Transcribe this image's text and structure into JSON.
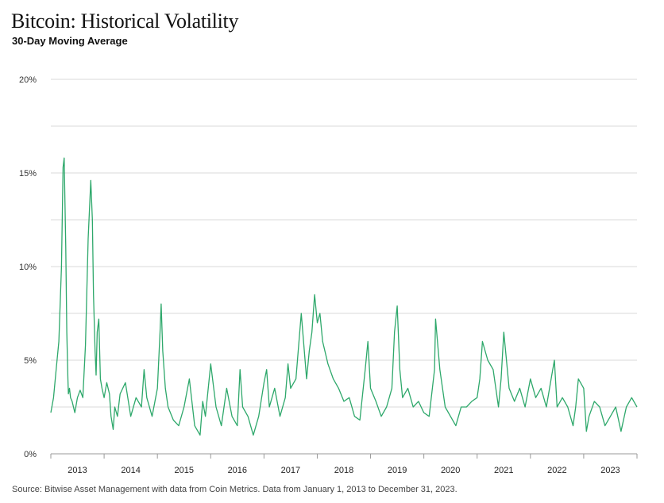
{
  "header": {
    "title": "Bitcoin: Historical Volatility",
    "subtitle": "30-Day Moving Average"
  },
  "footer": {
    "source": "Source: Bitwise Asset Management with data from Coin Metrics. Data from January 1, 2013 to December 31, 2023."
  },
  "colors": {
    "line": "#2ea86b",
    "grid": "#d9d9d9",
    "axis": "#999999"
  },
  "chart_data": {
    "type": "line",
    "title": "Bitcoin: Historical Volatility",
    "subtitle": "30-Day Moving Average",
    "xlabel": "",
    "ylabel": "",
    "ylim": [
      0,
      20
    ],
    "xlim": [
      2013.0,
      2024.0
    ],
    "yticks": [
      {
        "value": 0,
        "label": "0%"
      },
      {
        "value": 5,
        "label": "5%"
      },
      {
        "value": 10,
        "label": "10%"
      },
      {
        "value": 15,
        "label": "15%"
      },
      {
        "value": 20,
        "label": "20%"
      }
    ],
    "gridlines": [
      0,
      2.5,
      5,
      7.5,
      10,
      12.5,
      15,
      17.5,
      20
    ],
    "xtick_labels": [
      "2013",
      "2014",
      "2015",
      "2016",
      "2017",
      "2018",
      "2019",
      "2020",
      "2021",
      "2022",
      "2023"
    ],
    "year_boundaries": [
      2013,
      2014,
      2015,
      2016,
      2017,
      2018,
      2019,
      2020,
      2021,
      2022,
      2023,
      2024
    ],
    "series": [
      {
        "name": "30-Day Moving Average Volatility",
        "x": [
          2013.0,
          2013.05,
          2013.1,
          2013.15,
          2013.2,
          2013.23,
          2013.25,
          2013.28,
          2013.3,
          2013.32,
          2013.33,
          2013.35,
          2013.37,
          2013.4,
          2013.45,
          2013.5,
          2013.55,
          2013.6,
          2013.65,
          2013.7,
          2013.75,
          2013.78,
          2013.8,
          2013.83,
          2013.85,
          2013.87,
          2013.9,
          2013.93,
          2013.96,
          2014.0,
          2014.05,
          2014.1,
          2014.13,
          2014.17,
          2014.2,
          2014.25,
          2014.3,
          2014.4,
          2014.5,
          2014.6,
          2014.7,
          2014.75,
          2014.8,
          2014.9,
          2015.0,
          2015.05,
          2015.07,
          2015.1,
          2015.15,
          2015.2,
          2015.3,
          2015.4,
          2015.5,
          2015.6,
          2015.7,
          2015.8,
          2015.85,
          2015.9,
          2016.0,
          2016.1,
          2016.2,
          2016.3,
          2016.4,
          2016.5,
          2016.55,
          2016.6,
          2016.7,
          2016.8,
          2016.9,
          2017.0,
          2017.05,
          2017.1,
          2017.2,
          2017.3,
          2017.4,
          2017.45,
          2017.5,
          2017.6,
          2017.7,
          2017.8,
          2017.85,
          2017.9,
          2017.95,
          2018.0,
          2018.05,
          2018.1,
          2018.2,
          2018.3,
          2018.4,
          2018.5,
          2018.6,
          2018.7,
          2018.8,
          2018.9,
          2018.95,
          2019.0,
          2019.1,
          2019.2,
          2019.3,
          2019.4,
          2019.45,
          2019.5,
          2019.55,
          2019.6,
          2019.7,
          2019.8,
          2019.9,
          2020.0,
          2020.1,
          2020.2,
          2020.22,
          2020.3,
          2020.4,
          2020.5,
          2020.6,
          2020.7,
          2020.8,
          2020.9,
          2021.0,
          2021.05,
          2021.1,
          2021.2,
          2021.3,
          2021.4,
          2021.45,
          2021.5,
          2021.6,
          2021.7,
          2021.8,
          2021.9,
          2022.0,
          2022.1,
          2022.2,
          2022.3,
          2022.4,
          2022.45,
          2022.5,
          2022.6,
          2022.7,
          2022.8,
          2022.85,
          2022.9,
          2023.0,
          2023.05,
          2023.1,
          2023.2,
          2023.3,
          2023.4,
          2023.5,
          2023.6,
          2023.7,
          2023.8,
          2023.9,
          2024.0
        ],
        "values": [
          2.2,
          3.0,
          4.5,
          6.0,
          10.0,
          15.3,
          15.8,
          11.0,
          6.5,
          4.0,
          3.2,
          3.5,
          3.0,
          2.8,
          2.2,
          3.0,
          3.4,
          3.0,
          5.8,
          11.5,
          14.6,
          12.5,
          8.5,
          5.5,
          4.2,
          6.5,
          7.2,
          4.0,
          3.5,
          3.0,
          3.8,
          3.2,
          2.0,
          1.3,
          2.5,
          2.0,
          3.2,
          3.8,
          2.0,
          3.0,
          2.5,
          4.5,
          3.0,
          2.0,
          3.5,
          6.5,
          8.0,
          5.5,
          3.5,
          2.5,
          1.8,
          1.5,
          2.5,
          4.0,
          1.5,
          1.0,
          2.8,
          2.0,
          4.8,
          2.5,
          1.5,
          3.5,
          2.0,
          1.5,
          4.5,
          2.5,
          2.0,
          1.0,
          2.0,
          3.8,
          4.5,
          2.5,
          3.5,
          2.0,
          3.0,
          4.8,
          3.5,
          4.0,
          7.5,
          4.0,
          5.5,
          6.5,
          8.5,
          7.0,
          7.5,
          6.0,
          4.8,
          4.0,
          3.5,
          2.8,
          3.0,
          2.0,
          1.8,
          4.5,
          6.0,
          3.5,
          2.8,
          2.0,
          2.5,
          3.5,
          6.5,
          7.9,
          4.5,
          3.0,
          3.5,
          2.5,
          2.8,
          2.2,
          2.0,
          4.5,
          7.2,
          4.5,
          2.5,
          2.0,
          1.5,
          2.5,
          2.5,
          2.8,
          3.0,
          4.0,
          6.0,
          5.0,
          4.5,
          2.5,
          4.0,
          6.5,
          3.5,
          2.8,
          3.5,
          2.5,
          4.0,
          3.0,
          3.5,
          2.5,
          4.2,
          5.0,
          2.5,
          3.0,
          2.5,
          1.5,
          2.5,
          4.0,
          3.5,
          1.2,
          2.0,
          2.8,
          2.5,
          1.5,
          2.0,
          2.5,
          1.2,
          2.5,
          3.0,
          2.5
        ]
      }
    ]
  }
}
